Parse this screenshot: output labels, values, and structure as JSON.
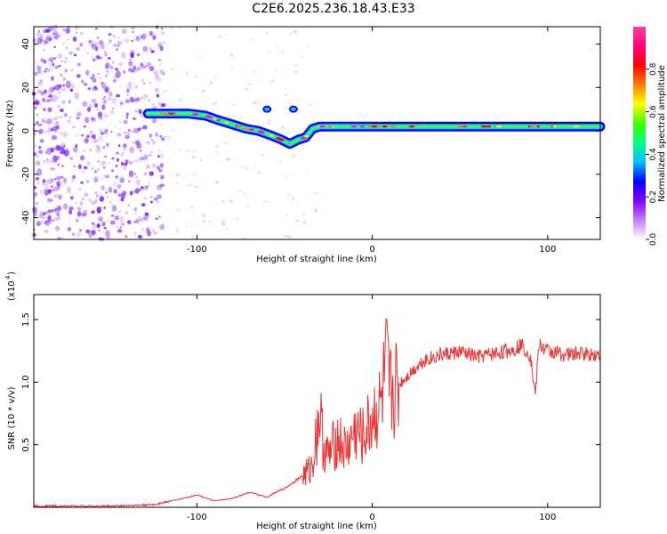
{
  "title": "C2E6.2025.236.18.43.E33",
  "chart_data": [
    {
      "type": "heatmap",
      "subtype": "spectrogram",
      "xlabel": "Height of straight line (km)",
      "ylabel": "Frequency (Hz)",
      "xlim": [
        -193,
        130
      ],
      "ylim": [
        -50,
        48
      ],
      "x_ticks": [
        -100,
        0,
        100
      ],
      "x_tick_labels": [
        "-100",
        "0",
        "100"
      ],
      "y_ticks": [
        -40,
        -20,
        0,
        20,
        40
      ],
      "y_tick_labels": [
        "-40",
        "-20",
        "0",
        "20",
        "40"
      ],
      "colorbar": {
        "label": "Normalized spectral amplitude",
        "range": [
          0,
          1
        ],
        "ticks": [
          0,
          0.2,
          0.4,
          0.6,
          0.8
        ],
        "tick_labels": [
          "0.0",
          "0.2",
          "0.4",
          "0.6",
          "0.8"
        ],
        "colormap": [
          "#ffffff",
          "#c080ff",
          "#8000ff",
          "#0000ff",
          "#00c0ff",
          "#00ff80",
          "#40ff00",
          "#ffff00",
          "#ff8000",
          "#ff0000",
          "#ff0080",
          "#ff40a0"
        ]
      },
      "noise_region_x": [
        -193,
        -122
      ],
      "signal_trace": {
        "x": [
          -128,
          -115,
          -105,
          -95,
          -88,
          -80,
          -72,
          -65,
          -58,
          -52,
          -47,
          -42,
          -38,
          -34,
          -30,
          -25,
          -20,
          -10,
          0,
          10,
          30,
          60,
          90,
          110,
          130
        ],
        "freq": [
          8,
          8,
          8,
          7,
          5,
          3,
          1,
          0,
          -2,
          -4,
          -6,
          -4,
          -3,
          1,
          2,
          2,
          2,
          2,
          2,
          2,
          2,
          2,
          2,
          2,
          2
        ]
      },
      "side_feature": {
        "x": [
          -60,
          -45
        ],
        "freq": [
          10,
          10
        ]
      }
    },
    {
      "type": "line",
      "xlabel": "Height of straight line (km)",
      "ylabel": "SNR (10 * v/v)",
      "y_scale_label": "(x10",
      "y_scale_exponent": "4",
      "xlim": [
        -193,
        130
      ],
      "ylim": [
        0,
        1.7
      ],
      "x_ticks": [
        -100,
        0,
        100
      ],
      "x_tick_labels": [
        "-100",
        "0",
        "100"
      ],
      "y_ticks": [
        0.5,
        1.0,
        1.5
      ],
      "y_tick_labels": [
        "0.5",
        "1.0",
        "1.5"
      ],
      "series": [
        {
          "name": "SNR",
          "color": "#ee3333",
          "x": [
            -193,
            -150,
            -125,
            -115,
            -105,
            -100,
            -90,
            -80,
            -70,
            -65,
            -60,
            -55,
            -50,
            -45,
            -40,
            -35,
            -32,
            -30,
            -28,
            -25,
            -20,
            -15,
            -10,
            -5,
            0,
            5,
            8,
            10,
            15,
            20,
            25,
            30,
            40,
            50,
            60,
            70,
            80,
            85,
            90,
            93,
            95,
            100,
            110,
            120,
            130
          ],
          "y": [
            0.01,
            0.01,
            0.02,
            0.05,
            0.08,
            0.1,
            0.05,
            0.07,
            0.12,
            0.1,
            0.08,
            0.12,
            0.15,
            0.2,
            0.25,
            0.3,
            0.55,
            0.78,
            0.5,
            0.4,
            0.55,
            0.45,
            0.6,
            0.55,
            0.72,
            0.8,
            1.1,
            0.9,
            0.98,
            1.05,
            1.12,
            1.18,
            1.22,
            1.24,
            1.2,
            1.23,
            1.26,
            1.3,
            1.22,
            0.9,
            1.3,
            1.25,
            1.22,
            1.23,
            1.22
          ]
        }
      ],
      "grid": false
    }
  ]
}
